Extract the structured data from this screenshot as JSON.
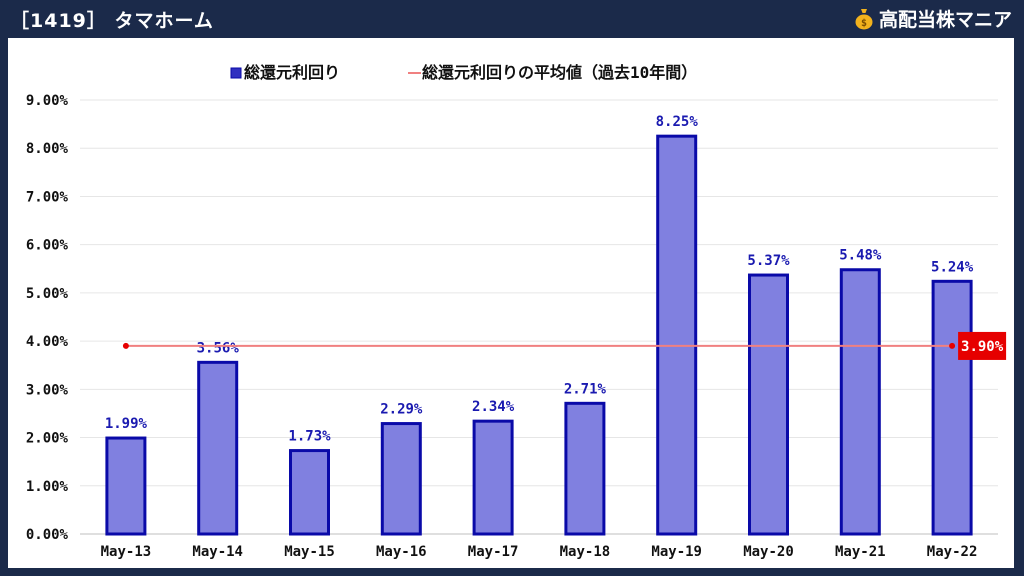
{
  "header": {
    "title": "［1419］ タマホーム",
    "brand": "高配当株マニア",
    "brand_icon": "money-bag-icon"
  },
  "colors": {
    "background": "#1b2a4a",
    "bar_fill": "#8080e0",
    "bar_stroke": "#0a0aa8",
    "label_color": "#1a1ab0",
    "average_line": "#f08080",
    "average_badge": "#e60000"
  },
  "chart_data": {
    "type": "bar",
    "categories": [
      "May-13",
      "May-14",
      "May-15",
      "May-16",
      "May-17",
      "May-18",
      "May-19",
      "May-20",
      "May-21",
      "May-22"
    ],
    "series": [
      {
        "name": "総還元利回り",
        "values": [
          1.99,
          3.56,
          1.73,
          2.29,
          2.34,
          2.71,
          8.25,
          5.37,
          5.48,
          5.24
        ]
      }
    ],
    "average": {
      "name": "総還元利回りの平均値（過去10年間）",
      "value": 3.9
    },
    "value_labels": [
      "1.99%",
      "3.56%",
      "1.73%",
      "2.29%",
      "2.34%",
      "2.71%",
      "8.25%",
      "5.37%",
      "5.48%",
      "5.24%"
    ],
    "average_label": "3.90%",
    "yticks": [
      "0.00%",
      "1.00%",
      "2.00%",
      "3.00%",
      "4.00%",
      "5.00%",
      "6.00%",
      "7.00%",
      "8.00%",
      "9.00%"
    ],
    "ylim": [
      0,
      9
    ],
    "legend_position": "top-center",
    "grid": true,
    "title": "",
    "xlabel": "",
    "ylabel": ""
  }
}
